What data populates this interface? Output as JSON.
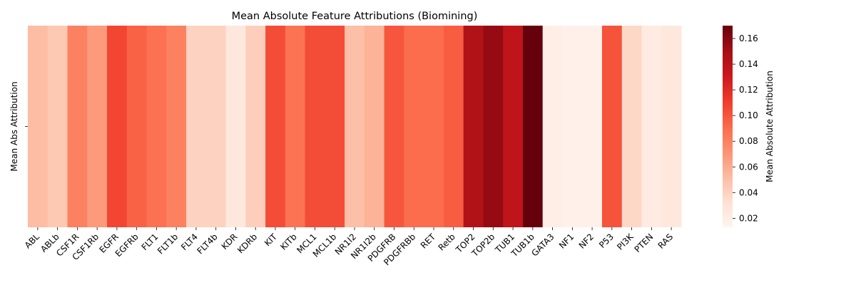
{
  "chart_data": {
    "type": "heatmap",
    "title": "Mean Absolute Feature Attributions (Biomining)",
    "xlabel": "",
    "ylabel": "",
    "row_labels": [
      "Mean Abs Attribution"
    ],
    "categories": [
      "ABL",
      "ABLb",
      "CSF1R",
      "CSF1Rb",
      "EGFR",
      "EGFRb",
      "FLT1",
      "FLT1b",
      "FLT4",
      "FLT4b",
      "KDR",
      "KDRb",
      "KIT",
      "KITb",
      "MCL1",
      "MCL1b",
      "NR1I2",
      "NR1I2b",
      "PDGFRB",
      "PDGFRBb",
      "RET",
      "Retb",
      "TOP2",
      "TOP2b",
      "TUB1",
      "TUB1b",
      "GATA3",
      "NF1",
      "NF2",
      "P53",
      "PI3K",
      "PTEN",
      "RAS"
    ],
    "values": [
      0.051,
      0.045,
      0.08,
      0.068,
      0.107,
      0.095,
      0.088,
      0.08,
      0.04,
      0.04,
      0.025,
      0.042,
      0.104,
      0.087,
      0.104,
      0.104,
      0.05,
      0.056,
      0.1,
      0.09,
      0.09,
      0.097,
      0.144,
      0.155,
      0.137,
      0.17,
      0.02,
      0.017,
      0.017,
      0.101,
      0.037,
      0.022,
      0.025
    ],
    "colorbar": {
      "label": "Mean Absolute Attribution",
      "min": 0.013,
      "max": 0.17,
      "ticks": [
        "0.02",
        "0.04",
        "0.06",
        "0.08",
        "0.10",
        "0.12",
        "0.14",
        "0.16"
      ],
      "colormap": "Reds"
    }
  }
}
